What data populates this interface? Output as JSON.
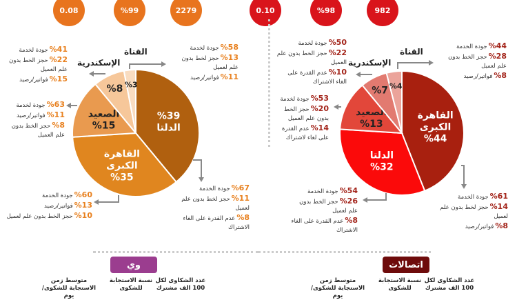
{
  "chart_data": [
    {
      "type": "pie",
      "brand": "وي",
      "brand_color": "#9b3d8f",
      "accent": "#e8741e",
      "pct_color": "#e8801e",
      "metrics": {
        "avg_response": "0.08",
        "response_rate": "%99",
        "complaints_per_100k": "2279"
      },
      "metric_labels": {
        "avg_response": "متوسط زمن الاستجابة للشكوى/يوم",
        "response_rate": "نسبة الاستجابة للشكوى",
        "complaints_per_100k": "عدد الشكاوى لكل 100 الف مشترك"
      },
      "slices": [
        {
          "name": "الدلتا",
          "value": 39,
          "label": "%39",
          "color": "#b0600f",
          "callout": [
            [
              "%67",
              "جودة الخدمة"
            ],
            [
              "%11",
              "حجز لخط بدون علم لعميل"
            ],
            [
              "%8",
              "عدم القدرة على الغاء الاشتراك"
            ]
          ]
        },
        {
          "name": "القاهرة الكبرى",
          "value": 35,
          "label": "%35",
          "color": "#e0861f",
          "callout": [
            [
              "%60",
              "جودة الخدمة"
            ],
            [
              "%13",
              "فواتير/رصيد"
            ],
            [
              "%10",
              "حجز الخط بدون علم لعميل"
            ]
          ]
        },
        {
          "name": "الصعيد",
          "value": 15,
          "label": "%15",
          "color": "#e99a4f",
          "callout": [
            [
              "%63",
              "جودة لخدمة"
            ],
            [
              "%11",
              "فواتير/رصيد"
            ],
            [
              "%8",
              "حجز الخط بدون علم العميل"
            ]
          ]
        },
        {
          "name": "الإسكندرية",
          "value": 8,
          "label": "%8",
          "color": "#f6c79a",
          "callout": [
            [
              "%41",
              "جودة لخدمة"
            ],
            [
              "%22",
              "حجز الخط بدون علم العميل"
            ],
            [
              "%15",
              "فواتير/رصيد"
            ]
          ]
        },
        {
          "name": "القناة",
          "value": 3,
          "label": "%3",
          "color": "#f9dcc0",
          "callout": [
            [
              "%58",
              "جودة لخدمة"
            ],
            [
              "%13",
              "حجز لخط بدون علم لعميل"
            ],
            [
              "%11",
              "فواتير/رصيد"
            ]
          ]
        }
      ]
    },
    {
      "type": "pie",
      "brand": "اتصالات",
      "brand_color": "#6e0b0b",
      "accent": "#d9141b",
      "pct_color": "#a3241a",
      "metrics": {
        "avg_response": "0.10",
        "response_rate": "%98",
        "complaints_per_100k": "982"
      },
      "metric_labels": {
        "avg_response": "متوسط زمن الاستجابة للشكوى/يوم",
        "response_rate": "نسبة الاستجابة للشكوى",
        "complaints_per_100k": "عدد الشكاوى لكل 100 الف مشترك"
      },
      "slices": [
        {
          "name": "القاهرة الكبرى",
          "value": 44,
          "label": "%44",
          "color": "#a8200f",
          "callout": [
            [
              "%61",
              "جودة الخدمة"
            ],
            [
              "%14",
              "حجز لخط بدون علم لعميل"
            ],
            [
              "%8",
              "فواتير/رصيد"
            ]
          ]
        },
        {
          "name": "الدلتا",
          "value": 32,
          "label": "%32",
          "color": "#fb0a0a",
          "callout": [
            [
              "%54",
              "جودة الخدمة"
            ],
            [
              "%26",
              "حجز الخط بدون علم لعميل"
            ],
            [
              "%8",
              "عدم القدرة على الغاء الاشتراك"
            ]
          ]
        },
        {
          "name": "الصعيد",
          "value": 13,
          "label": "%13",
          "color": "#e2473a",
          "callout": [
            [
              "%53",
              "جودة لخدمة"
            ],
            [
              "%20",
              "حجز الخط بدون علم العميل"
            ],
            [
              "%14",
              "عدم القدرة على لغاء لاشتراك"
            ]
          ]
        },
        {
          "name": "الإسكندرية",
          "value": 7,
          "label": "%7",
          "color": "#e27a70",
          "callout": [
            [
              "%50",
              "جودة لخدمة"
            ],
            [
              "%22",
              "حجز الخط بدون علم العميل"
            ],
            [
              "%10",
              "عدم القدرة على الغاء الاشتراك"
            ]
          ]
        },
        {
          "name": "القناة",
          "value": 4,
          "label": "%4",
          "color": "#eba39a",
          "callout": [
            [
              "%44",
              "جودة الخدمة"
            ],
            [
              "%28",
              "حجز الخط بدون علم لعميل"
            ],
            [
              "%8",
              "فواتير/رصيد"
            ]
          ]
        }
      ]
    }
  ]
}
